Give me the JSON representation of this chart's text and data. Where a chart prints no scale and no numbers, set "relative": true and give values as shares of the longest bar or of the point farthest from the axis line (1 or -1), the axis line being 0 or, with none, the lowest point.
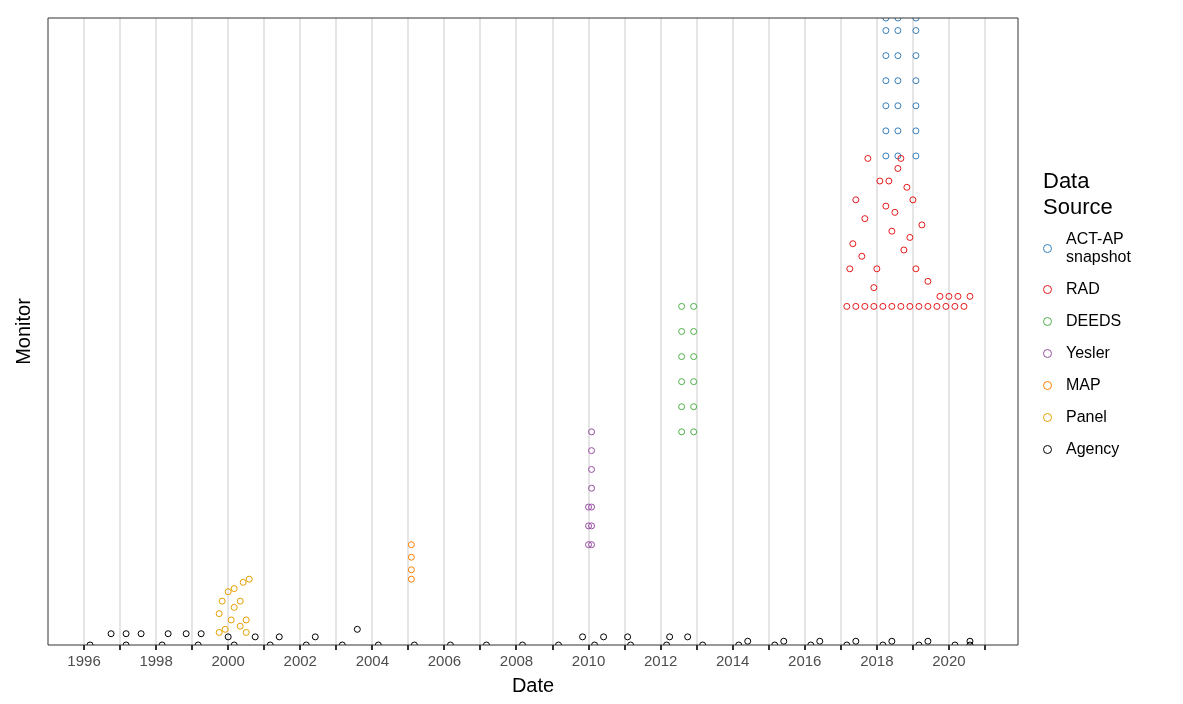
{
  "chart_data": {
    "type": "scatter",
    "xlabel": "Date",
    "ylabel": "Monitor",
    "legend_title": "Data Source",
    "legend": "right",
    "grid": "x",
    "marker": "circle",
    "relative": true,
    "xlim": [
      "1995-01",
      "2021-12"
    ],
    "xticks": [
      {
        "value": "1996",
        "label": "1996"
      },
      {
        "value": "1997",
        "label": null
      },
      {
        "value": "1998",
        "label": "1998"
      },
      {
        "value": "1999",
        "label": null
      },
      {
        "value": "2000",
        "label": "2000"
      },
      {
        "value": "2001",
        "label": null
      },
      {
        "value": "2002",
        "label": "2002"
      },
      {
        "value": "2003",
        "label": null
      },
      {
        "value": "2004",
        "label": "2004"
      },
      {
        "value": "2005",
        "label": null
      },
      {
        "value": "2006",
        "label": "2006"
      },
      {
        "value": "2007",
        "label": null
      },
      {
        "value": "2008",
        "label": "2008"
      },
      {
        "value": "2009",
        "label": null
      },
      {
        "value": "2010",
        "label": "2010"
      },
      {
        "value": "2011",
        "label": null
      },
      {
        "value": "2012",
        "label": "2012"
      },
      {
        "value": "2013",
        "label": null
      },
      {
        "value": "2014",
        "label": "2014"
      },
      {
        "value": "2015",
        "label": null
      },
      {
        "value": "2016",
        "label": "2016"
      },
      {
        "value": "2017",
        "label": null
      },
      {
        "value": "2018",
        "label": "2018"
      },
      {
        "value": "2019",
        "label": null
      },
      {
        "value": "2020",
        "label": "2020"
      },
      {
        "value": "2021",
        "label": null
      }
    ],
    "series": [
      {
        "name": "ACT-AP snapshot",
        "color": "#377eb8",
        "x": [
          "2018-04",
          "2018-04",
          "2018-04",
          "2018-04",
          "2018-04",
          "2018-04",
          "2018-04",
          "2018-08",
          "2018-08",
          "2018-08",
          "2018-08",
          "2018-08",
          "2018-08",
          "2018-08",
          "2019-02",
          "2019-02",
          "2019-02",
          "2019-02",
          "2019-02",
          "2019-02",
          "2019-02"
        ],
        "values": [
          0.78,
          0.82,
          0.86,
          0.9,
          0.94,
          0.98,
          1.0,
          0.78,
          0.82,
          0.86,
          0.9,
          0.94,
          0.98,
          1.0,
          0.78,
          0.82,
          0.86,
          0.9,
          0.94,
          0.98,
          1.0
        ]
      },
      {
        "name": "RAD",
        "color": "#e41a1c",
        "x": [
          "2017-03",
          "2017-06",
          "2017-09",
          "2017-12",
          "2018-03",
          "2018-06",
          "2018-09",
          "2018-12",
          "2019-03",
          "2019-06",
          "2019-09",
          "2019-12",
          "2020-03",
          "2020-06",
          "2019-10",
          "2020-01",
          "2020-04",
          "2020-08",
          "2017-10",
          "2018-09",
          "2018-08",
          "2018-05",
          "2018-02",
          "2017-06",
          "2018-11",
          "2019-04",
          "2017-05",
          "2018-06",
          "2017-04",
          "2017-08",
          "2018-01",
          "2018-10",
          "2019-02",
          "2019-06",
          "2017-09",
          "2018-04",
          "2018-12",
          "2017-12",
          "2019-01",
          "2018-07"
        ],
        "values": [
          0.54,
          0.54,
          0.54,
          0.54,
          0.54,
          0.54,
          0.54,
          0.54,
          0.54,
          0.54,
          0.54,
          0.54,
          0.54,
          0.54,
          0.556,
          0.556,
          0.556,
          0.556,
          0.776,
          0.776,
          0.76,
          0.74,
          0.74,
          0.71,
          0.73,
          0.67,
          0.64,
          0.66,
          0.6,
          0.62,
          0.6,
          0.63,
          0.6,
          0.58,
          0.68,
          0.7,
          0.65,
          0.57,
          0.71,
          0.69
        ]
      },
      {
        "name": "DEEDS",
        "color": "#4daf4a",
        "x": [
          "2012-08",
          "2012-08",
          "2012-08",
          "2012-08",
          "2012-08",
          "2012-08",
          "2012-12",
          "2012-12",
          "2012-12",
          "2012-12",
          "2012-12",
          "2012-12"
        ],
        "values": [
          0.34,
          0.38,
          0.42,
          0.46,
          0.5,
          0.54,
          0.34,
          0.38,
          0.42,
          0.46,
          0.5,
          0.54
        ]
      },
      {
        "name": "Yesler",
        "color": "#984ea3",
        "x": [
          "2010-02",
          "2010-02",
          "2010-02",
          "2010-02",
          "2010-02",
          "2010-02",
          "2010-02",
          "2010-01",
          "2010-01",
          "2010-01"
        ],
        "values": [
          0.16,
          0.19,
          0.22,
          0.25,
          0.28,
          0.31,
          0.34,
          0.16,
          0.19,
          0.22
        ]
      },
      {
        "name": "MAP",
        "color": "#ff7f00",
        "x": [
          "2005-02",
          "2005-02",
          "2005-02",
          "2005-02"
        ],
        "values": [
          0.105,
          0.12,
          0.14,
          0.16
        ]
      },
      {
        "name": "Panel",
        "color": "#e6a000",
        "x": [
          "1999-10",
          "1999-10",
          "1999-11",
          "2000-01",
          "2000-03",
          "2000-06",
          "2000-08",
          "2000-03",
          "2000-05",
          "2000-07",
          "2000-02",
          "2000-05",
          "2000-07",
          "1999-12"
        ],
        "values": [
          0.02,
          0.05,
          0.07,
          0.085,
          0.09,
          0.1,
          0.105,
          0.06,
          0.03,
          0.04,
          0.04,
          0.07,
          0.02,
          0.025
        ]
      },
      {
        "name": "Agency",
        "color": "#000000",
        "x": [
          "1996-03",
          "1997-03",
          "1998-03",
          "1999-03",
          "2000-03",
          "2001-03",
          "2002-03",
          "2003-03",
          "2004-03",
          "2005-03",
          "2006-03",
          "2007-03",
          "2008-03",
          "2009-03",
          "2010-03",
          "2011-03",
          "2012-03",
          "2013-03",
          "2014-03",
          "2015-03",
          "2016-03",
          "2017-03",
          "2018-03",
          "2019-03",
          "2020-03",
          "2020-08",
          "1996-10",
          "1997-03",
          "1997-08",
          "1998-05",
          "1998-11",
          "1999-04",
          "2000-01",
          "2000-10",
          "2001-06",
          "2002-06",
          "2009-11",
          "2010-06",
          "2011-02",
          "2012-04",
          "2012-10",
          "2014-06",
          "2015-06",
          "2016-06",
          "2017-06",
          "2018-06",
          "2019-06",
          "2020-08",
          "2003-08"
        ],
        "values": [
          0,
          0,
          0,
          0,
          0,
          0,
          0,
          0,
          0,
          0,
          0,
          0,
          0,
          0,
          0,
          0,
          0,
          0,
          0,
          0,
          0,
          0,
          0,
          0,
          0,
          0,
          0.018,
          0.018,
          0.018,
          0.018,
          0.018,
          0.018,
          0.013,
          0.013,
          0.013,
          0.013,
          0.013,
          0.013,
          0.013,
          0.013,
          0.013,
          0.006,
          0.006,
          0.006,
          0.006,
          0.006,
          0.006,
          0.006,
          0.025
        ]
      }
    ]
  }
}
